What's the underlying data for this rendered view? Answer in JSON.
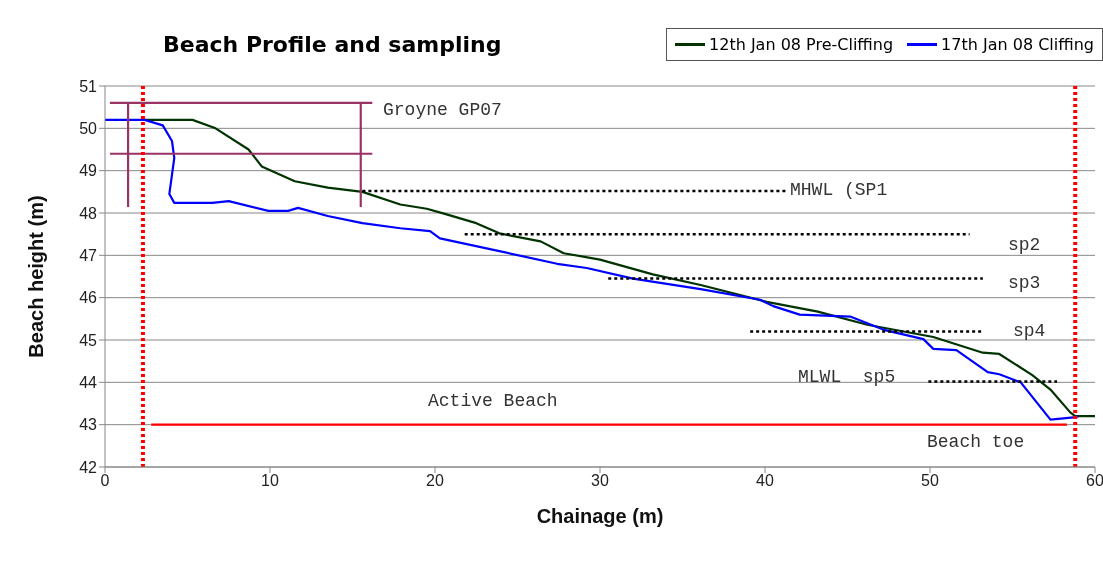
{
  "chart_data": {
    "type": "line",
    "title": "Beach Profile and sampling",
    "xlabel": "Chainage (m)",
    "ylabel": "Beach height (m)",
    "xlim": [
      0,
      60
    ],
    "xticks": [
      0,
      10,
      20,
      30,
      40,
      50,
      60
    ],
    "ylim": [
      42,
      51
    ],
    "yticks": [
      42,
      43,
      44,
      45,
      46,
      47,
      48,
      49,
      50,
      51
    ],
    "grid": "y",
    "legend": "top right",
    "marker": "none",
    "line_style": "solid",
    "series": [
      {
        "name": "12th Jan 08 Pre-Cliffing",
        "color": "#003300",
        "x": [
          2.4,
          5.3,
          6.7,
          8.7,
          9.5,
          11.5,
          13.5,
          15.6,
          17.9,
          19.5,
          20.6,
          22.5,
          23.9,
          26.4,
          27.8,
          30,
          33.2,
          36.1,
          40.1,
          43.2,
          46.2,
          50.2,
          53.2,
          54.2,
          56.2,
          57.3,
          58.5,
          58.8,
          60
        ],
        "values": [
          50.2,
          50.2,
          50.0,
          49.5,
          49.1,
          48.75,
          48.6,
          48.5,
          48.2,
          48.1,
          47.98,
          47.76,
          47.52,
          47.33,
          47.05,
          46.9,
          46.55,
          46.3,
          45.9,
          45.67,
          45.36,
          45.07,
          44.7,
          44.67,
          44.17,
          43.83,
          43.29,
          43.2,
          43.2
        ]
      },
      {
        "name": "17th Jan 08 Cliffing",
        "color": "#0000ff",
        "x": [
          0,
          2.4,
          3.5,
          4.06,
          4.2,
          3.9,
          4.2,
          6.5,
          7.5,
          9.9,
          11.1,
          11.7,
          13.5,
          15.6,
          17.9,
          19.7,
          20.3,
          23.9,
          27.4,
          29.2,
          32,
          36.1,
          39.7,
          40.5,
          42.1,
          45.2,
          47.2,
          49.6,
          50.2,
          51.6,
          53.5,
          54.2,
          55.5,
          57.3,
          58.7,
          59
        ],
        "values": [
          50.2,
          50.2,
          50.07,
          49.7,
          49.3,
          48.45,
          48.24,
          48.24,
          48.28,
          48.05,
          48.05,
          48.12,
          47.93,
          47.76,
          47.64,
          47.57,
          47.4,
          47.1,
          46.8,
          46.7,
          46.45,
          46.2,
          45.95,
          45.8,
          45.6,
          45.55,
          45.24,
          45.02,
          44.79,
          44.76,
          44.24,
          44.19,
          44.0,
          43.12,
          43.17,
          43.2
        ]
      },
      {
        "color": "#000000",
        "line_style": "dotted",
        "x": [
          15.6,
          41.3
        ],
        "values": [
          48.52,
          48.52
        ]
      },
      {
        "color": "#000000",
        "line_style": "dotted",
        "x": [
          21.8,
          52.4
        ],
        "values": [
          47.5,
          47.5
        ]
      },
      {
        "color": "#000000",
        "line_style": "dotted",
        "x": [
          30.5,
          53.2
        ],
        "values": [
          46.45,
          46.45
        ]
      },
      {
        "color": "#000000",
        "line_style": "dotted",
        "x": [
          39.1,
          53.2
        ],
        "values": [
          45.2,
          45.2
        ]
      },
      {
        "color": "#000000",
        "line_style": "dotted",
        "x": [
          49.9,
          57.7
        ],
        "values": [
          44.02,
          44.02
        ]
      },
      {
        "color": "#993366",
        "x": [
          0.3,
          16.2
        ],
        "values": [
          50.6,
          50.6
        ]
      },
      {
        "color": "#993366",
        "x": [
          0.3,
          16.2
        ],
        "values": [
          49.4,
          49.4
        ]
      },
      {
        "color": "#993366",
        "x": [
          1.4,
          1.4
        ],
        "values": [
          50.6,
          48.14
        ]
      },
      {
        "color": "#993366",
        "x": [
          15.5,
          15.5
        ],
        "values": [
          50.6,
          48.14
        ]
      },
      {
        "color": "#ff0000",
        "x": [
          2.8,
          58.3
        ],
        "values": [
          43.0,
          43.0
        ]
      }
    ],
    "ref_lines": [
      {
        "axis": "x",
        "value": 2.3,
        "color": "#ff0000",
        "line_style": "dotted"
      },
      {
        "axis": "x",
        "value": 58.8,
        "color": "#ff0000",
        "line_style": "dotted"
      }
    ],
    "annotations": [
      "Groyne GP07",
      "MHWL (SP1",
      "sp2",
      "sp3",
      "sp4",
      "MLWL  sp5",
      "Active Beach",
      "Beach toe"
    ]
  }
}
